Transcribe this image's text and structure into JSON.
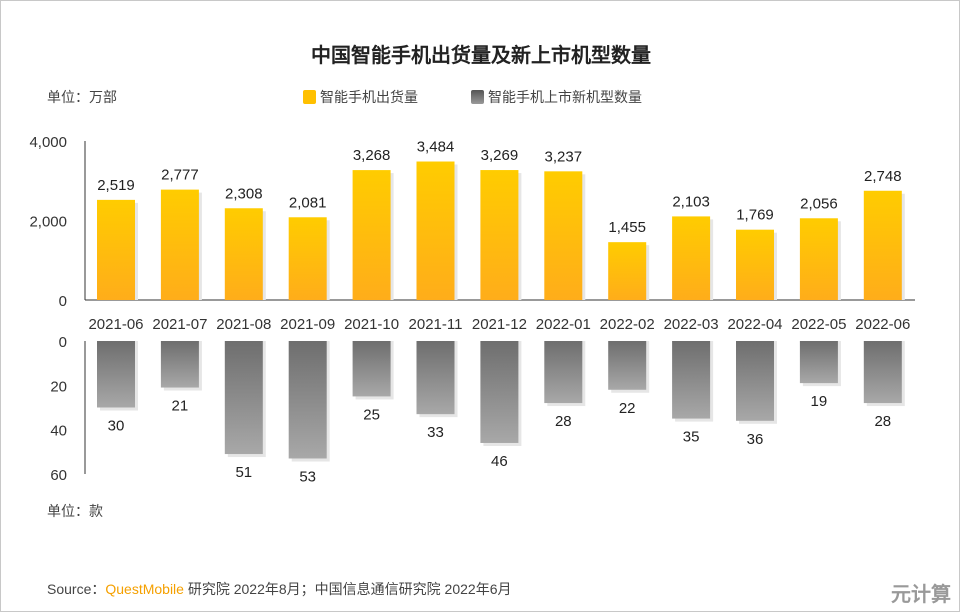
{
  "chart_data": [
    {
      "type": "bar",
      "title": "中国智能手机出货量及新上市机型数量",
      "unit_label": "单位：万部",
      "series": [
        {
          "name": "智能手机出货量",
          "values": [
            2519,
            2777,
            2308,
            2081,
            3268,
            3484,
            3269,
            3237,
            1455,
            2103,
            1769,
            2056,
            2748
          ],
          "color": "#ffc000"
        }
      ],
      "categories": [
        "2021-06",
        "2021-07",
        "2021-08",
        "2021-09",
        "2021-10",
        "2021-11",
        "2021-12",
        "2022-01",
        "2022-02",
        "2022-03",
        "2022-04",
        "2022-05",
        "2022-06"
      ],
      "ylim": [
        0,
        4000
      ],
      "yticks": [
        "0",
        "2,000",
        "4,000"
      ],
      "data_labels": [
        "2,519",
        "2,777",
        "2,308",
        "2,081",
        "3,268",
        "3,484",
        "3,269",
        "3,237",
        "1,455",
        "2,103",
        "1,769",
        "2,056",
        "2,748"
      ],
      "grid": false
    },
    {
      "type": "bar",
      "orientation": "downward",
      "unit_label": "单位：款",
      "series": [
        {
          "name": "智能手机上市新机型数量",
          "values": [
            30,
            21,
            51,
            53,
            25,
            33,
            46,
            28,
            22,
            35,
            36,
            19,
            28
          ],
          "color": "#808080"
        }
      ],
      "categories": [
        "2021-06",
        "2021-07",
        "2021-08",
        "2021-09",
        "2021-10",
        "2021-11",
        "2021-12",
        "2022-01",
        "2022-02",
        "2022-03",
        "2022-04",
        "2022-05",
        "2022-06"
      ],
      "ylim": [
        0,
        60
      ],
      "yticks": [
        "0",
        "20",
        "40",
        "60"
      ],
      "grid": false
    }
  ],
  "legend": {
    "position": "top-right",
    "items": [
      "智能手机出货量",
      "智能手机上市新机型数量"
    ]
  },
  "source": {
    "prefix": "Source：",
    "brand": "QuestMobile",
    "rest": " 研究院 2022年8月；中国信息通信研究院 2022年6月"
  },
  "watermark": "元计算"
}
